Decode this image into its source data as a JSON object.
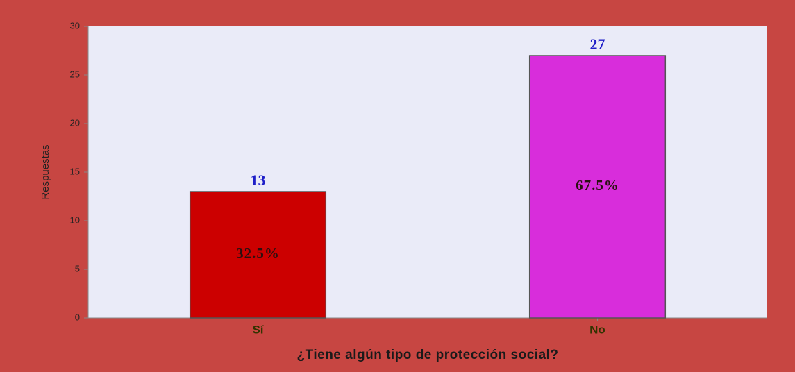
{
  "chart_data": {
    "type": "bar",
    "xlabel": "¿Tiene algún tipo de protección social?",
    "ylabel": "Respuestas",
    "categories": [
      "Sí",
      "No"
    ],
    "values": [
      13,
      27
    ],
    "colors": [
      "#cc0000",
      "#d82ddb"
    ],
    "percent_labels": [
      "32.5%",
      "67.5%"
    ],
    "ylim": [
      0,
      30
    ],
    "yticks": [
      0,
      5,
      10,
      15,
      20,
      25,
      30
    ]
  }
}
